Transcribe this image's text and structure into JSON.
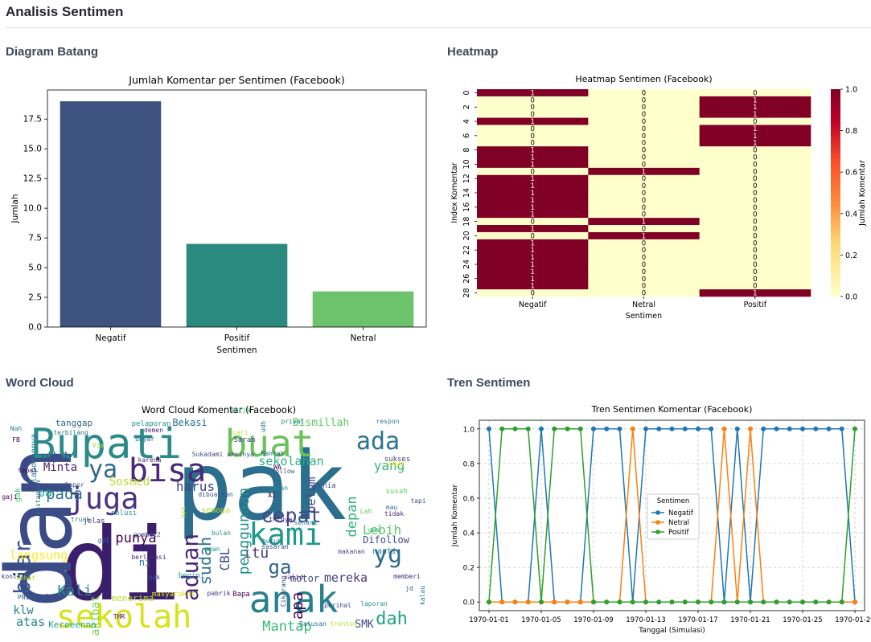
{
  "page": {
    "title": "Analisis Sentimen",
    "sections": {
      "bar": "Diagram Batang",
      "heatmap": "Heatmap",
      "wordcloud": "Word Cloud",
      "trend": "Tren Sentimen"
    }
  },
  "chart_data": [
    {
      "id": "bar",
      "type": "bar",
      "title": "Jumlah Komentar per Sentimen (Facebook)",
      "xlabel": "Sentimen",
      "ylabel": "Jumlah",
      "categories": [
        "Negatif",
        "Positif",
        "Netral"
      ],
      "values": [
        19,
        7,
        3
      ],
      "colors": [
        "#3f5380",
        "#2a8a80",
        "#6cc36c"
      ],
      "ylim": [
        0,
        19.95
      ],
      "yticks": [
        0.0,
        2.5,
        5.0,
        7.5,
        10.0,
        12.5,
        15.0,
        17.5
      ],
      "ytick_labels": [
        "0.0",
        "2.5",
        "5.0",
        "7.5",
        "10.0",
        "12.5",
        "15.0",
        "17.5"
      ],
      "grid": false
    },
    {
      "id": "heatmap",
      "type": "heatmap",
      "title": "Heatmap Sentimen (Facebook)",
      "xlabel": "Sentimen",
      "ylabel": "Index Komentar",
      "columns": [
        "Negatif",
        "Netral",
        "Positif"
      ],
      "rows": [
        [
          1,
          0,
          0
        ],
        [
          0,
          0,
          1
        ],
        [
          0,
          0,
          1
        ],
        [
          0,
          0,
          1
        ],
        [
          1,
          0,
          0
        ],
        [
          0,
          0,
          1
        ],
        [
          0,
          0,
          1
        ],
        [
          0,
          0,
          1
        ],
        [
          1,
          0,
          0
        ],
        [
          1,
          0,
          0
        ],
        [
          1,
          0,
          0
        ],
        [
          0,
          1,
          0
        ],
        [
          1,
          0,
          0
        ],
        [
          1,
          0,
          0
        ],
        [
          1,
          0,
          0
        ],
        [
          1,
          0,
          0
        ],
        [
          1,
          0,
          0
        ],
        [
          1,
          0,
          0
        ],
        [
          0,
          1,
          0
        ],
        [
          1,
          0,
          0
        ],
        [
          0,
          1,
          0
        ],
        [
          1,
          0,
          0
        ],
        [
          1,
          0,
          0
        ],
        [
          1,
          0,
          0
        ],
        [
          1,
          0,
          0
        ],
        [
          1,
          0,
          0
        ],
        [
          1,
          0,
          0
        ],
        [
          1,
          0,
          0
        ],
        [
          0,
          0,
          1
        ]
      ],
      "yticks": [
        "0",
        "2",
        "4",
        "6",
        "8",
        "10",
        "12",
        "14",
        "16",
        "18",
        "20",
        "22",
        "24",
        "26",
        "28"
      ],
      "colorbar": {
        "label": "Jumlah Komentar",
        "ticks": [
          "0.0",
          "0.2",
          "0.4",
          "0.6",
          "0.8",
          "1.0"
        ],
        "low_color": "#ffffcc",
        "high_color": "#800026"
      }
    },
    {
      "id": "wordcloud",
      "type": "wordcloud",
      "title": "Word Cloud Komentar (Facebook)",
      "words": [
        {
          "text": "pak",
          "color": "#2c6e8e"
        },
        {
          "text": "di",
          "color": "#3b1f6d"
        },
        {
          "text": "dan",
          "color": "#3a4b86"
        },
        {
          "text": "Bupati",
          "color": "#2a8b8a"
        },
        {
          "text": "buat",
          "color": "#6cc25a"
        },
        {
          "text": "bisa",
          "color": "#482878"
        },
        {
          "text": "kami",
          "color": "#1f9a8a"
        },
        {
          "text": "anak",
          "color": "#27808e"
        },
        {
          "text": "sekolah",
          "color": "#d8e219"
        },
        {
          "text": "cepat",
          "color": "#3e4a89"
        },
        {
          "text": "juga",
          "color": "#463480"
        },
        {
          "text": "ya",
          "color": "#31688e"
        },
        {
          "text": "ada",
          "color": "#2b758e"
        },
        {
          "text": "yang",
          "color": "#35b779"
        },
        {
          "text": "yg",
          "color": "#2f6b8e"
        },
        {
          "text": "Mantap",
          "color": "#3aba76"
        },
        {
          "text": "aduan",
          "color": "#482576"
        },
        {
          "text": "biar",
          "color": "#39568c"
        },
        {
          "text": "Lebih",
          "color": "#5ec962"
        },
        {
          "text": "ga",
          "color": "#33638d"
        },
        {
          "text": "itu",
          "color": "#443983"
        },
        {
          "text": "apa",
          "color": "#440154"
        },
        {
          "text": "dah",
          "color": "#20a386"
        },
        {
          "text": "langsung",
          "color": "#fde725"
        },
        {
          "text": "sekolahan",
          "color": "#29af7f"
        },
        {
          "text": "udah",
          "color": "#3b528b"
        },
        {
          "text": "Minta",
          "color": "#481f70"
        },
        {
          "text": "pada",
          "color": "#2d708e"
        },
        {
          "text": "harus",
          "color": "#414487"
        },
        {
          "text": "Sosmed",
          "color": "#b8de29"
        },
        {
          "text": "punya",
          "color": "#440154"
        },
        {
          "text": "sudah",
          "color": "#2c728e"
        },
        {
          "text": "CBL",
          "color": "#3b528b"
        },
        {
          "text": "penggunaan",
          "color": "#21908d"
        },
        {
          "text": "belum",
          "color": "#404588"
        },
        {
          "text": "depan",
          "color": "#34b679"
        },
        {
          "text": "motor",
          "color": "#3e4989"
        },
        {
          "text": "mereka",
          "color": "#433e85"
        },
        {
          "text": "Kali",
          "color": "#238a8d"
        },
        {
          "text": "akibat",
          "color": "#7ad151"
        },
        {
          "text": "atas",
          "color": "#25858e"
        },
        {
          "text": "klw",
          "color": "#277f8e"
        },
        {
          "text": "SMK",
          "color": "#3f4788"
        },
        {
          "text": "Kereeennn",
          "color": "#22a785"
        },
        {
          "text": "menerima",
          "color": "#b5de2b"
        },
        {
          "text": "tanggap",
          "color": "#31688e"
        },
        {
          "text": "Bekasi",
          "color": "#2e6f8e"
        },
        {
          "text": "Bismillah",
          "color": "#5ec962"
        },
        {
          "text": "Difollow",
          "color": "#3e4a89"
        },
        {
          "text": "nanti",
          "color": "#2a788e"
        },
        {
          "text": "semoga",
          "color": "#b8de29"
        },
        {
          "text": "laporannya",
          "color": "#2a788e"
        },
        {
          "text": "gak",
          "color": "#4ac16d"
        },
        {
          "text": "pa",
          "color": "#1f9e89"
        },
        {
          "text": "ni",
          "color": "#2c728e"
        },
        {
          "text": "Saran",
          "color": "#414487"
        },
        {
          "text": "dunia",
          "color": "#3e4c8a"
        },
        {
          "text": "sukses",
          "color": "#433e85"
        },
        {
          "text": "susah",
          "color": "#5ec962"
        },
        {
          "text": "Chat",
          "color": "#fde725"
        },
        {
          "text": "solusi",
          "color": "#20928c"
        },
        {
          "text": "jelas",
          "color": "#472c7a"
        },
        {
          "text": "gpt",
          "color": "#2f6c8e"
        },
        {
          "text": "begini",
          "color": "#21918c"
        },
        {
          "text": "Bapa",
          "color": "#440154"
        },
        {
          "text": "masyarakat",
          "color": "#dde318"
        },
        {
          "text": "selalu",
          "color": "#39558c"
        },
        {
          "text": "konte2",
          "color": "#453581"
        },
        {
          "text": "jd",
          "color": "#3b518b"
        },
        {
          "text": "memberi",
          "color": "#482878"
        },
        {
          "text": "valid",
          "color": "#481b6d"
        },
        {
          "text": "kerja",
          "color": "#35b779"
        },
        {
          "text": "privat",
          "color": "#26828e"
        },
        {
          "text": "pelaporan",
          "color": "#21918c"
        },
        {
          "text": "Mantab",
          "color": "#31688e"
        },
        {
          "text": "aksinya",
          "color": "#3e4a89"
        },
        {
          "text": "karena",
          "color": "#472f7d"
        },
        {
          "text": "Via",
          "color": "#9fda3a"
        },
        {
          "text": "FB",
          "color": "#440154"
        },
        {
          "text": "Nah",
          "color": "#287c8e"
        },
        {
          "text": "terbilang",
          "color": "#2a788e"
        },
        {
          "text": "melapor",
          "color": "#3b528b"
        },
        {
          "text": "gaji",
          "color": "#440154"
        },
        {
          "text": "truck",
          "color": "#2a788e"
        },
        {
          "text": "Instagram",
          "color": "#2f6c8e"
        },
        {
          "text": "tepat",
          "color": "#440154"
        },
        {
          "text": "respon",
          "color": "#2a788e"
        },
        {
          "text": "tapi",
          "color": "#3b528b"
        },
        {
          "text": "mau",
          "color": "#2c728e"
        },
        {
          "text": "tidak",
          "color": "#481b6d"
        },
        {
          "text": "Lah",
          "color": "#5ec962"
        },
        {
          "text": "gua",
          "color": "#35b779"
        },
        {
          "text": "makanan",
          "color": "#3e4a89"
        },
        {
          "text": "laporan",
          "color": "#21918c"
        },
        {
          "text": "Ratusan",
          "color": "#2a788e"
        },
        {
          "text": "tronton",
          "color": "#b8de29"
        },
        {
          "text": "THR",
          "color": "#440154"
        },
        {
          "text": "hak",
          "color": "#3b528b"
        },
        {
          "text": "berlokasi",
          "color": "#482878"
        },
        {
          "text": "gombal2",
          "color": "#3e4a89"
        },
        {
          "text": "Sehat",
          "color": "#b8de29"
        },
        {
          "text": "PNI",
          "color": "#2c728e"
        },
        {
          "text": "pabrik",
          "color": "#472f7d"
        },
        {
          "text": "aman",
          "color": "#21918c"
        },
        {
          "text": "dibuatkan",
          "color": "#3b528b"
        },
        {
          "text": "tktnya",
          "color": "#481b6d"
        },
        {
          "text": "sehari",
          "color": "#2a788e"
        },
        {
          "text": "sasaran",
          "color": "#3e4a89"
        },
        {
          "text": "buruh",
          "color": "#2c728e"
        },
        {
          "text": "AI",
          "color": "#440154"
        },
        {
          "text": "jalan",
          "color": "#21918c"
        },
        {
          "text": "follow",
          "color": "#3b528b"
        },
        {
          "text": "WA",
          "color": "#440154"
        },
        {
          "text": "udh",
          "color": "#2a788e"
        },
        {
          "text": "Sukadami",
          "color": "#3e4a89"
        },
        {
          "text": "cari",
          "color": "#b8de29"
        },
        {
          "text": "bayar",
          "color": "#2c728e"
        },
        {
          "text": "demen",
          "color": "#472f7d"
        },
        {
          "text": "bulan",
          "color": "#21918c"
        },
        {
          "text": "nya",
          "color": "#b8de29"
        },
        {
          "text": "Cikarang",
          "color": "#3b528b"
        },
        {
          "text": "kalau",
          "color": "#2a788e"
        },
        {
          "text": "perihal",
          "color": "#3e4a89"
        },
        {
          "text": "banget",
          "color": "#2c728e"
        }
      ]
    },
    {
      "id": "trend",
      "type": "line",
      "title": "Tren Sentimen Komentar (Facebook)",
      "xlabel": "Tanggal (Simulasi)",
      "ylabel": "Jumlah Komentar",
      "x": [
        "1970-01-01",
        "1970-01-02",
        "1970-01-03",
        "1970-01-04",
        "1970-01-05",
        "1970-01-06",
        "1970-01-07",
        "1970-01-08",
        "1970-01-09",
        "1970-01-10",
        "1970-01-11",
        "1970-01-12",
        "1970-01-13",
        "1970-01-14",
        "1970-01-15",
        "1970-01-16",
        "1970-01-17",
        "1970-01-18",
        "1970-01-19",
        "1970-01-20",
        "1970-01-21",
        "1970-01-22",
        "1970-01-23",
        "1970-01-24",
        "1970-01-25",
        "1970-01-26",
        "1970-01-27",
        "1970-01-28",
        "1970-01-29"
      ],
      "xticks": [
        "1970-01-01",
        "1970-01-05",
        "1970-01-09",
        "1970-01-13",
        "1970-01-17",
        "1970-01-21",
        "1970-01-25",
        "1970-01-29"
      ],
      "ylim": [
        -0.05,
        1.05
      ],
      "yticks": [
        "0.0",
        "0.2",
        "0.4",
        "0.6",
        "0.8",
        "1.0"
      ],
      "grid": true,
      "legend": {
        "title": "Sentimen",
        "placement": "center"
      },
      "series": [
        {
          "name": "Negatif",
          "color": "#1f77b4",
          "values": [
            1,
            0,
            0,
            0,
            1,
            0,
            0,
            0,
            1,
            1,
            1,
            0,
            1,
            1,
            1,
            1,
            1,
            1,
            0,
            1,
            0,
            1,
            1,
            1,
            1,
            1,
            1,
            1,
            0
          ]
        },
        {
          "name": "Netral",
          "color": "#ff7f0e",
          "values": [
            0,
            0,
            0,
            0,
            0,
            0,
            0,
            0,
            0,
            0,
            0,
            1,
            0,
            0,
            0,
            0,
            0,
            0,
            1,
            0,
            1,
            0,
            0,
            0,
            0,
            0,
            0,
            0,
            0
          ]
        },
        {
          "name": "Positif",
          "color": "#2ca02c",
          "values": [
            0,
            1,
            1,
            1,
            0,
            1,
            1,
            1,
            0,
            0,
            0,
            0,
            0,
            0,
            0,
            0,
            0,
            0,
            0,
            0,
            0,
            0,
            0,
            0,
            0,
            0,
            0,
            0,
            1
          ]
        }
      ]
    }
  ]
}
